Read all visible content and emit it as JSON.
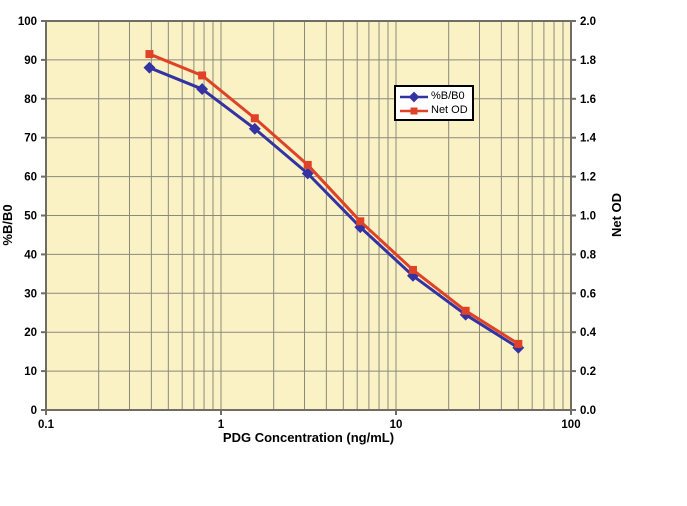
{
  "chart_data": {
    "type": "line",
    "x_scale": "log",
    "x": [
      0.39,
      0.78,
      1.56,
      3.13,
      6.25,
      12.5,
      25,
      50
    ],
    "series": [
      {
        "name": "%B/B0",
        "axis": "left",
        "marker": "diamond",
        "color": "#3333A3",
        "values": [
          88,
          82.5,
          72.3,
          60.8,
          47,
          34.5,
          24.5,
          16
        ]
      },
      {
        "name": "Net OD",
        "axis": "right",
        "marker": "square",
        "color": "#E04228",
        "values": [
          1.83,
          1.72,
          1.5,
          1.26,
          0.97,
          0.72,
          0.51,
          0.34
        ]
      }
    ],
    "title": "",
    "xlabel": "PDG Concentration (ng/mL)",
    "ylabel_left": "%B/B0",
    "ylabel_right": "Net OD",
    "xlim": [
      0.1,
      100
    ],
    "ylim_left": [
      0,
      100
    ],
    "ylim_right": [
      0,
      2
    ],
    "xtick_labels": [
      "0.1",
      "1",
      "10",
      "100"
    ],
    "ytick_left_labels": [
      "0",
      "10",
      "20",
      "30",
      "40",
      "50",
      "60",
      "70",
      "80",
      "90",
      "100"
    ],
    "ytick_right_labels": [
      "0.0",
      "0.2",
      "0.4",
      "0.6",
      "0.8",
      "1.0",
      "1.2",
      "1.4",
      "1.6",
      "1.8",
      "2.0"
    ],
    "grid": true,
    "legend_position": "upper-middle",
    "colors": {
      "plot_background": "#FAF1C4",
      "grid": "#8A8A7C",
      "axis": "#6E6E66",
      "text": "#000000",
      "legend_border": "#000000",
      "legend_background": "#FFFFFF"
    }
  },
  "legend": {
    "items": [
      {
        "label": "%B/B0"
      },
      {
        "label": "Net OD"
      }
    ]
  }
}
